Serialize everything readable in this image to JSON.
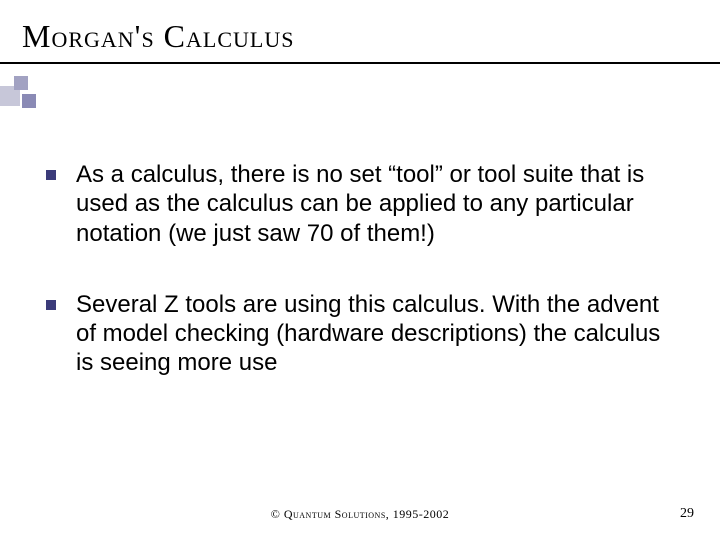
{
  "title": "Morgan's Calculus",
  "bullets": [
    {
      "text": "As a calculus, there is no set “tool” or tool suite that is used as the calculus can be applied to any particular notation (we just saw 70 of them!)"
    },
    {
      "text": "Several Z tools are using this calculus.  With the advent of model checking (hardware descriptions) the calculus is seeing more use"
    }
  ],
  "footer": "© Quantum Solutions, 1995-2002",
  "page_number": "29",
  "colors": {
    "bullet_square": "#3b3b7a",
    "deco1": "#c7c7d9",
    "deco2": "#a2a2c2",
    "deco3": "#8a8ab5",
    "underline": "#000000",
    "text": "#000000",
    "background": "#ffffff"
  },
  "typography": {
    "title_fontsize": 32,
    "body_fontsize": 24,
    "footer_fontsize": 12,
    "pagenum_fontsize": 14
  }
}
